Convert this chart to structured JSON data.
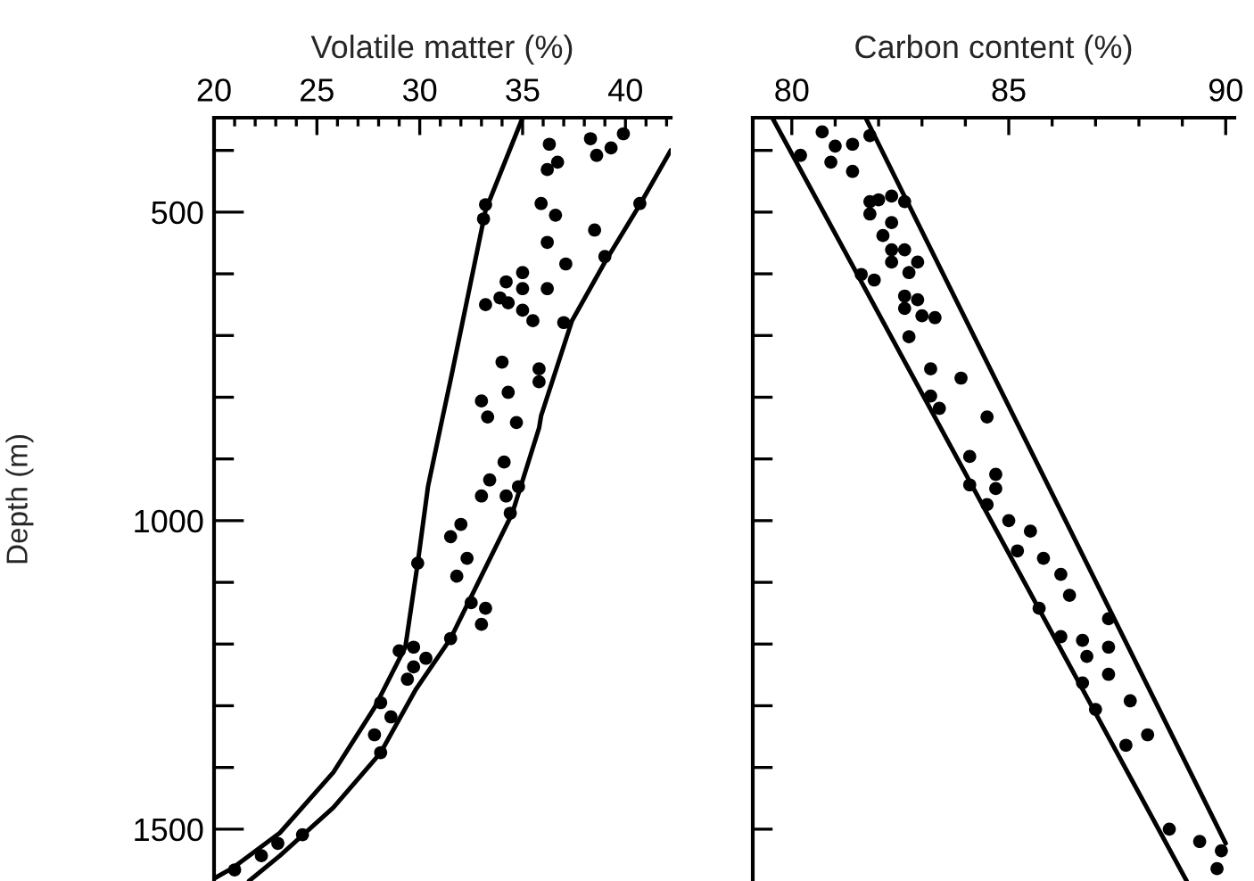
{
  "chart_data": [
    {
      "type": "scatter",
      "xlabel": "Volatile matter (%)",
      "ylabel": "Depth (m)",
      "xlim": [
        20,
        42.2
      ],
      "ylim": [
        1584,
        347
      ],
      "xticks": [
        20,
        {
          "value": 21,
          "label": null
        },
        {
          "value": 22,
          "label": null
        },
        {
          "value": 23,
          "label": null
        },
        {
          "value": 24,
          "label": null
        },
        25,
        {
          "value": 26,
          "label": null
        },
        {
          "value": 27,
          "label": null
        },
        {
          "value": 28,
          "label": null
        },
        {
          "value": 29,
          "label": null
        },
        30,
        {
          "value": 31,
          "label": null
        },
        {
          "value": 32,
          "label": null
        },
        {
          "value": 33,
          "label": null
        },
        {
          "value": 34,
          "label": null
        },
        35,
        {
          "value": 36,
          "label": null
        },
        {
          "value": 37,
          "label": null
        },
        {
          "value": 38,
          "label": null
        },
        {
          "value": 39,
          "label": null
        },
        40,
        {
          "value": 41,
          "label": null
        },
        {
          "value": 42,
          "label": null
        }
      ],
      "yticks": [
        {
          "value": 400,
          "label": null
        },
        500,
        {
          "value": 600,
          "label": null
        },
        {
          "value": 700,
          "label": null
        },
        {
          "value": 800,
          "label": null
        },
        {
          "value": 900,
          "label": null
        },
        1000,
        {
          "value": 1100,
          "label": null
        },
        {
          "value": 1200,
          "label": null
        },
        {
          "value": 1300,
          "label": null
        },
        {
          "value": 1400,
          "label": null
        },
        1500
      ],
      "grid": false,
      "series": [
        {
          "type": "line",
          "color": "#000000",
          "x": [
            35.0,
            33.2,
            31.5,
            31.0,
            30.4,
            29.9,
            29.3,
            27.8,
            25.8,
            23.2,
            20.9,
            20.0
          ],
          "values": [
            347,
            497,
            772,
            850,
            945,
            1069,
            1205,
            1303,
            1408,
            1506,
            1563,
            1580
          ]
        },
        {
          "type": "line",
          "color": "#000000",
          "x": [
            42.2,
            40.7,
            39.0,
            37.4,
            35.9,
            35.8,
            34.5,
            32.4,
            31.5,
            29.8,
            28.1,
            25.8,
            23.2,
            21.7
          ],
          "values": [
            400,
            488,
            581,
            676,
            830,
            850,
            988,
            1130,
            1191,
            1274,
            1376,
            1465,
            1543,
            1584
          ]
        },
        {
          "marker": "circle",
          "color": "#000000",
          "x": [
            36.3,
            38.3,
            39.9,
            39.3,
            38.6,
            36.7,
            36.2,
            33.2,
            33.1,
            35.9,
            36.6,
            40.7,
            38.5,
            36.2,
            39.0,
            37.1,
            35.0,
            34.2,
            35.0,
            36.2,
            33.9,
            33.2,
            34.3,
            35.0,
            35.5,
            37.0,
            34.0,
            35.8,
            35.8,
            34.3,
            33.0,
            33.3,
            34.7,
            34.1,
            33.4,
            33.0,
            34.2,
            34.8,
            34.4,
            32.0,
            31.5,
            32.3,
            29.9,
            31.8,
            32.5,
            33.2,
            33.0,
            31.5,
            29.0,
            29.7,
            30.3,
            29.7,
            29.4,
            28.1,
            28.6,
            27.8,
            28.1,
            24.3,
            23.1,
            22.3,
            21.0
          ],
          "values": [
            390,
            381,
            373,
            396,
            408,
            419,
            431,
            488,
            511,
            486,
            505,
            486,
            529,
            549,
            572,
            584,
            598,
            613,
            624,
            624,
            639,
            650,
            647,
            659,
            676,
            679,
            743,
            754,
            775,
            792,
            806,
            832,
            841,
            905,
            934,
            960,
            960,
            945,
            988,
            1006,
            1026,
            1061,
            1069,
            1090,
            1133,
            1142,
            1168,
            1191,
            1211,
            1205,
            1223,
            1237,
            1257,
            1295,
            1318,
            1347,
            1376,
            1509,
            1523,
            1543,
            1566
          ]
        }
      ]
    },
    {
      "type": "scatter",
      "xlabel": "Carbon content (%)",
      "xlim": [
        79.1,
        90.2
      ],
      "ylim": [
        1584,
        347
      ],
      "tick_labels": "x",
      "xticks": [
        80,
        {
          "value": 81,
          "label": null
        },
        {
          "value": 82,
          "label": null
        },
        {
          "value": 83,
          "label": null
        },
        {
          "value": 84,
          "label": null
        },
        85,
        {
          "value": 86,
          "label": null
        },
        {
          "value": 87,
          "label": null
        },
        {
          "value": 88,
          "label": null
        },
        {
          "value": 89,
          "label": null
        },
        90
      ],
      "yticks": [
        {
          "value": 400,
          "label": null
        },
        {
          "value": 500,
          "label": null
        },
        {
          "value": 600,
          "label": null
        },
        {
          "value": 700,
          "label": null
        },
        {
          "value": 800,
          "label": null
        },
        {
          "value": 900,
          "label": null
        },
        {
          "value": 1000,
          "label": null
        },
        {
          "value": 1100,
          "label": null
        },
        {
          "value": 1200,
          "label": null
        },
        {
          "value": 1300,
          "label": null
        },
        {
          "value": 1400,
          "label": null
        },
        {
          "value": 1500,
          "label": null
        }
      ],
      "grid": false,
      "series": [
        {
          "type": "line",
          "color": "#000000",
          "x": [
            79.55,
            89.1
          ],
          "values": [
            347,
            1584
          ]
        },
        {
          "type": "line",
          "color": "#000000",
          "x": [
            81.7,
            90.0
          ],
          "values": [
            347,
            1523
          ]
        },
        {
          "marker": "circle",
          "color": "#000000",
          "x": [
            80.7,
            81.0,
            81.4,
            81.8,
            80.9,
            80.2,
            81.4,
            81.8,
            82.0,
            82.3,
            82.6,
            81.8,
            82.3,
            82.1,
            82.3,
            82.3,
            82.6,
            82.9,
            82.7,
            81.6,
            81.9,
            82.6,
            82.9,
            82.6,
            83.0,
            83.3,
            82.7,
            83.2,
            83.9,
            83.2,
            83.4,
            84.5,
            84.1,
            84.7,
            84.1,
            84.7,
            84.5,
            85.0,
            85.5,
            85.2,
            85.8,
            86.2,
            86.4,
            85.7,
            87.3,
            86.2,
            86.7,
            86.8,
            87.3,
            87.3,
            86.7,
            87.0,
            87.8,
            88.2,
            87.7,
            88.7,
            89.4,
            89.9,
            89.8
          ],
          "values": [
            370,
            393,
            390,
            376,
            419,
            408,
            434,
            483,
            480,
            474,
            483,
            503,
            517,
            538,
            561,
            581,
            561,
            581,
            598,
            601,
            610,
            636,
            642,
            656,
            668,
            671,
            702,
            754,
            769,
            798,
            818,
            832,
            896,
            925,
            942,
            948,
            974,
            1000,
            1017,
            1049,
            1061,
            1087,
            1121,
            1142,
            1159,
            1188,
            1194,
            1220,
            1205,
            1249,
            1263,
            1306,
            1292,
            1347,
            1364,
            1500,
            1520,
            1535,
            1564
          ]
        }
      ]
    }
  ]
}
